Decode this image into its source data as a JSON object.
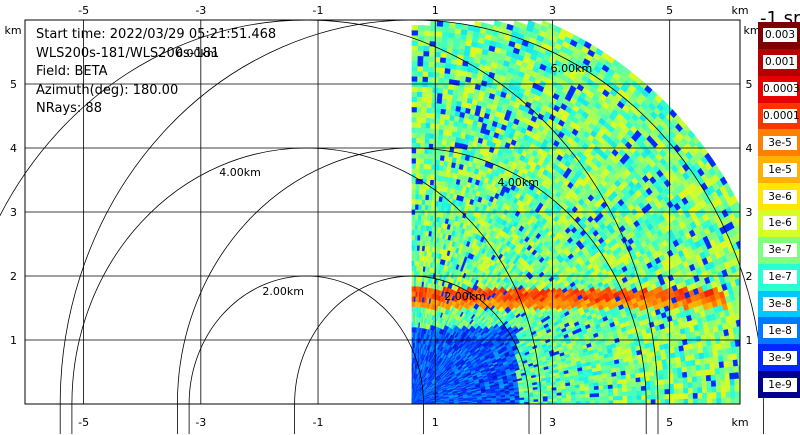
{
  "info": {
    "start_time": "Start time: 2022/03/29 05:21:51.468",
    "instrument": "WLS200s-181/WLS200s-181",
    "field": "Field: BETA",
    "azimuth": "Azimuth(deg): 180.00",
    "nrays": "NRays: 88"
  },
  "colorbar": {
    "unit_label": "-1 sr",
    "labels": [
      "0.003",
      "0.001",
      "0.0003",
      "0.0001",
      "3e-5",
      "1e-5",
      "3e-6",
      "1e-6",
      "3e-7",
      "1e-7",
      "3e-8",
      "1e-8",
      "3e-9",
      "1e-9"
    ],
    "colors": [
      "#7f0000",
      "#b40000",
      "#e60000",
      "#ff3300",
      "#ff8000",
      "#ffb300",
      "#ffe600",
      "#d4ff2a",
      "#80ff80",
      "#2affd4",
      "#00c8ff",
      "#0078ff",
      "#0028ff",
      "#00008f"
    ]
  },
  "chart_data": {
    "type": "heatmap",
    "xlabel": "km",
    "ylabel": "km",
    "xlim": [
      -6.0,
      6.2
    ],
    "ylim": [
      0,
      6.0
    ],
    "x_ticks": [
      -5,
      -3,
      -1,
      1,
      3,
      5
    ],
    "y_ticks": [
      1,
      2,
      3,
      4,
      5
    ],
    "range_rings": [
      {
        "radius_km": 2,
        "label": "2.00km"
      },
      {
        "radius_km": 4,
        "label": "4.00km"
      },
      {
        "radius_km": 6,
        "label": "6.00km"
      }
    ],
    "radar_origin": [
      0.6,
      0
    ],
    "max_range_km": 6.4,
    "azimuth_deg": 180.0,
    "n_rays": 88,
    "field": "BETA",
    "features": [
      {
        "description": "strong backscatter layer",
        "range_km": [
          0.0,
          5.5
        ],
        "height_km": [
          1.5,
          1.8
        ]
      },
      {
        "description": "near-ground boundary layer",
        "range_km": [
          0.0,
          2.0
        ],
        "height_km": [
          0.0,
          1.2
        ]
      }
    ]
  }
}
